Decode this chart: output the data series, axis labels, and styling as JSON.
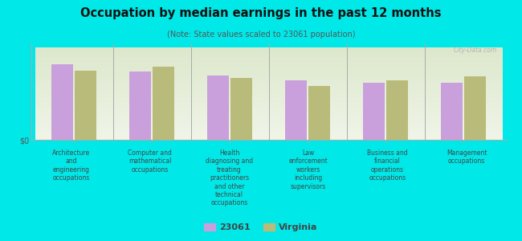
{
  "title": "Occupation by median earnings in the past 12 months",
  "subtitle": "(Note: State values scaled to 23061 population)",
  "background_color": "#00e8e8",
  "plot_bg_top": "#e8f0e0",
  "plot_bg_bottom": "#f5f8f0",
  "categories": [
    "Architecture\nand\nengineering\noccupations",
    "Computer and\nmathematical\noccupations",
    "Health\ndiagnosing and\ntreating\npractitioners\nand other\ntechnical\noccupations",
    "Law\nenforcement\nworkers\nincluding\nsupervisors",
    "Business and\nfinancial\noperations\noccupations",
    "Management\noccupations"
  ],
  "values_23061": [
    0.82,
    0.74,
    0.7,
    0.65,
    0.62,
    0.62
  ],
  "values_virginia": [
    0.75,
    0.8,
    0.67,
    0.59,
    0.65,
    0.69
  ],
  "color_23061": "#c9a0dc",
  "color_virginia": "#b8bb7a",
  "legend_23061": "23061",
  "legend_virginia": "Virginia",
  "ylabel": "$0",
  "watermark": "City-Data.com"
}
